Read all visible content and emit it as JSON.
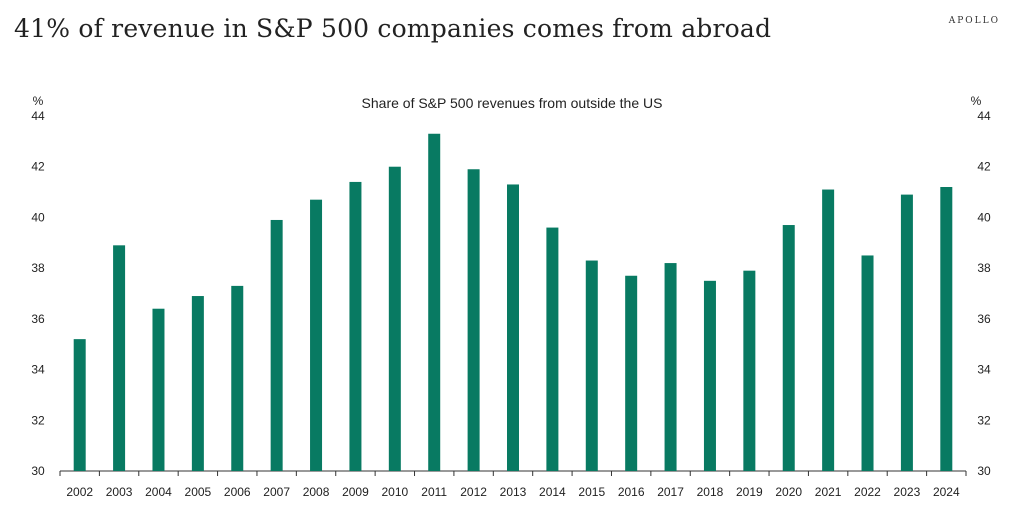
{
  "header": {
    "title": "41% of revenue in S&P 500 companies comes from abroad",
    "brand": "APOLLO"
  },
  "chart_data": {
    "type": "bar",
    "title": "Share of S&P 500 revenues from outside the US",
    "ylabel_left": "%",
    "ylabel_right": "%",
    "ylim": [
      30,
      44
    ],
    "yticks": [
      30,
      32,
      34,
      36,
      38,
      40,
      42,
      44
    ],
    "categories": [
      "2002",
      "2003",
      "2004",
      "2005",
      "2006",
      "2007",
      "2008",
      "2009",
      "2010",
      "2011",
      "2012",
      "2013",
      "2014",
      "2015",
      "2016",
      "2017",
      "2018",
      "2019",
      "2020",
      "2021",
      "2022",
      "2023",
      "2024"
    ],
    "values": [
      35.2,
      38.9,
      36.4,
      36.9,
      37.3,
      39.9,
      40.7,
      41.4,
      42.0,
      43.3,
      41.9,
      41.3,
      39.6,
      38.3,
      37.7,
      38.2,
      37.5,
      37.9,
      39.7,
      41.1,
      38.5,
      40.9,
      41.2
    ],
    "bar_color": "#087a62",
    "grid": false,
    "legend": "none"
  }
}
